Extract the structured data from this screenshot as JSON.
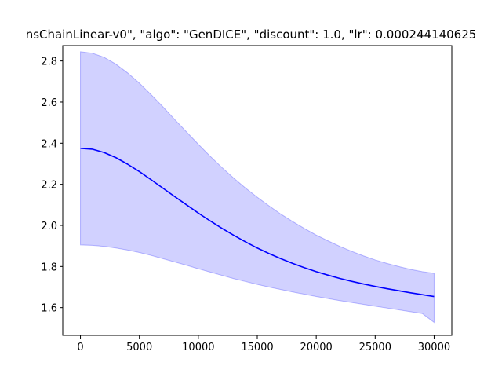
{
  "chart_data": {
    "type": "line",
    "title": "nsChainLinear-v0\", \"algo\": \"GenDICE\", \"discount\": 1.0, \"lr\": 0.000244140625",
    "xlabel": "",
    "ylabel": "",
    "xlim": [
      -1500,
      31500
    ],
    "ylim": [
      1.465,
      2.875
    ],
    "x_ticks": [
      0,
      5000,
      10000,
      15000,
      20000,
      25000,
      30000
    ],
    "y_ticks": [
      1.6,
      1.8,
      2.0,
      2.2,
      2.4,
      2.6,
      2.8
    ],
    "grid": false,
    "legend": "none",
    "series": [
      {
        "color": "#0000ff",
        "band_color": "#0000ff",
        "x": [
          0,
          1000,
          2000,
          3000,
          4000,
          5000,
          6000,
          7000,
          8000,
          9000,
          10000,
          11000,
          12000,
          13000,
          14000,
          15000,
          16000,
          17000,
          18000,
          19000,
          20000,
          21000,
          22000,
          23000,
          24000,
          25000,
          26000,
          27000,
          28000,
          29000,
          30000
        ],
        "mean": [
          2.375,
          2.371,
          2.355,
          2.33,
          2.298,
          2.262,
          2.222,
          2.181,
          2.14,
          2.1,
          2.06,
          2.022,
          1.986,
          1.952,
          1.92,
          1.89,
          1.863,
          1.838,
          1.815,
          1.794,
          1.775,
          1.758,
          1.742,
          1.728,
          1.715,
          1.703,
          1.692,
          1.682,
          1.672,
          1.663,
          1.654
        ],
        "upper": [
          2.845,
          2.838,
          2.818,
          2.785,
          2.742,
          2.692,
          2.636,
          2.577,
          2.515,
          2.455,
          2.395,
          2.337,
          2.282,
          2.23,
          2.182,
          2.137,
          2.095,
          2.055,
          2.019,
          1.985,
          1.953,
          1.925,
          1.898,
          1.874,
          1.852,
          1.832,
          1.815,
          1.8,
          1.786,
          1.775,
          1.767
        ],
        "lower": [
          1.905,
          1.903,
          1.898,
          1.89,
          1.88,
          1.868,
          1.854,
          1.838,
          1.822,
          1.806,
          1.789,
          1.773,
          1.757,
          1.741,
          1.727,
          1.713,
          1.7,
          1.688,
          1.676,
          1.665,
          1.654,
          1.644,
          1.634,
          1.625,
          1.616,
          1.607,
          1.598,
          1.589,
          1.58,
          1.571,
          1.528
        ]
      }
    ]
  }
}
